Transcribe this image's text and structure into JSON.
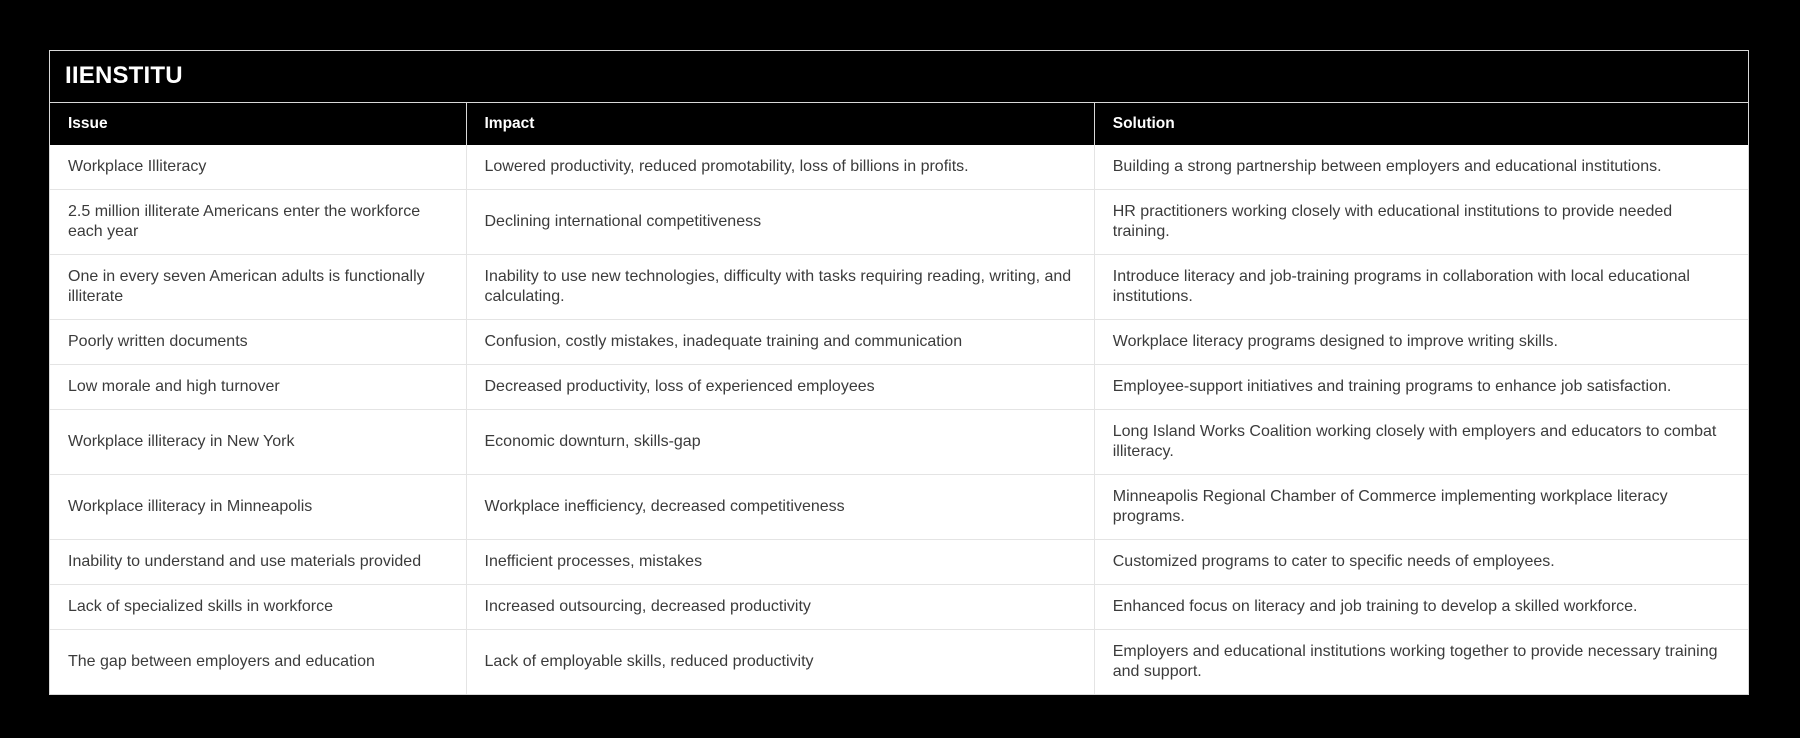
{
  "page": {
    "title": "IIENSTITU"
  },
  "colors": {
    "page_bg": "#000000",
    "header_bg": "#000000",
    "header_text": "#ffffff",
    "row_bg": "#ffffff",
    "row_text": "#3b3b3b",
    "row_divider": "#e4e4e4",
    "outer_border": "#d9d9d9"
  },
  "table": {
    "columns": [
      "Issue",
      "Impact",
      "Solution"
    ],
    "rows": [
      {
        "issue": "Workplace Illiteracy",
        "impact": "Lowered productivity, reduced promotability, loss of billions in profits.",
        "solution": "Building a strong partnership between employers and educational institutions."
      },
      {
        "issue": "2.5 million illiterate Americans enter the workforce each year",
        "impact": "Declining international competitiveness",
        "solution": "HR practitioners working closely with educational institutions to provide needed training."
      },
      {
        "issue": "One in every seven American adults is functionally illiterate",
        "impact": "Inability to use new technologies, difficulty with tasks requiring reading, writing, and calculating.",
        "solution": "Introduce literacy and job-training programs in collaboration with local educational institutions."
      },
      {
        "issue": "Poorly written documents",
        "impact": "Confusion, costly mistakes, inadequate training and communication",
        "solution": "Workplace literacy programs designed to improve writing skills."
      },
      {
        "issue": "Low morale and high turnover",
        "impact": "Decreased productivity, loss of experienced employees",
        "solution": "Employee-support initiatives and training programs to enhance job satisfaction."
      },
      {
        "issue": "Workplace illiteracy in New York",
        "impact": "Economic downturn, skills-gap",
        "solution": "Long Island Works Coalition working closely with employers and educators to combat illiteracy."
      },
      {
        "issue": "Workplace illiteracy in Minneapolis",
        "impact": "Workplace inefficiency, decreased competitiveness",
        "solution": "Minneapolis Regional Chamber of Commerce implementing workplace literacy programs."
      },
      {
        "issue": "Inability to understand and use materials provided",
        "impact": "Inefficient processes, mistakes",
        "solution": "Customized programs to cater to specific needs of employees."
      },
      {
        "issue": "Lack of specialized skills in workforce",
        "impact": "Increased outsourcing, decreased productivity",
        "solution": "Enhanced focus on literacy and job training to develop a skilled workforce."
      },
      {
        "issue": "The gap between employers and education",
        "impact": "Lack of employable skills, reduced productivity",
        "solution": "Employers and educational institutions working together to provide necessary training and support."
      }
    ]
  }
}
